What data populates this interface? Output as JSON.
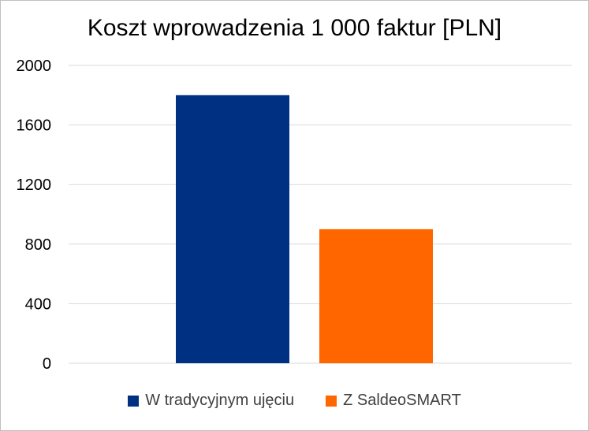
{
  "chart_data": {
    "type": "bar",
    "title": "Koszt wprowadzenia 1 000 faktur [PLN]",
    "xlabel": "",
    "ylabel": "",
    "ylim": [
      0,
      2000
    ],
    "yticks": [
      "0",
      "400",
      "800",
      "1200",
      "1600",
      "2000"
    ],
    "grid": true,
    "legend_position": "bottom",
    "series": [
      {
        "name": "W tradycyjnym ujęciu",
        "values": [
          1800
        ],
        "color": "#003082"
      },
      {
        "name": "Z SaldeoSMART",
        "values": [
          900
        ],
        "color": "#FF6600"
      }
    ]
  }
}
